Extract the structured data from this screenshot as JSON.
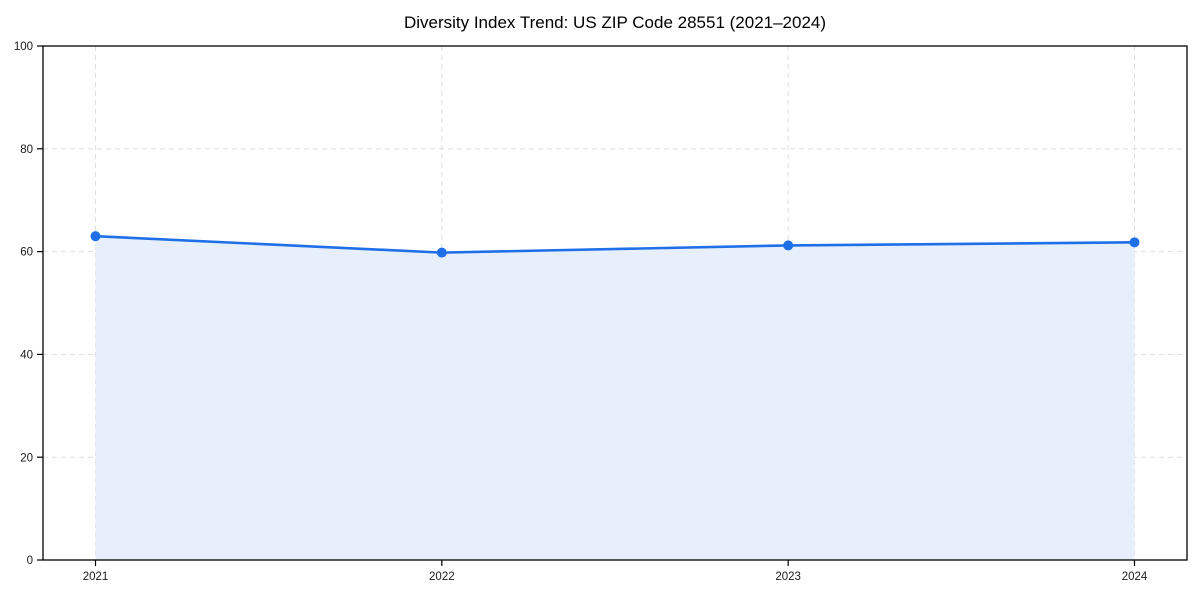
{
  "title": "Diversity Index Trend: US ZIP Code 28551 (2021–2024)",
  "chart_data": {
    "type": "line",
    "title": "Diversity Index Trend: US ZIP Code 28551 (2021–2024)",
    "x": [
      "2021",
      "2022",
      "2023",
      "2024"
    ],
    "series": [
      {
        "name": "Diversity Index",
        "values": [
          63.0,
          59.8,
          61.2,
          61.8
        ]
      }
    ],
    "xlabel": "",
    "ylabel": "",
    "ylim": [
      0,
      100
    ],
    "yticks": [
      0,
      20,
      40,
      60,
      80,
      100
    ],
    "grid": true,
    "grid_style": "dashed",
    "legend_position": "none",
    "area_fill": true,
    "colors": {
      "line": "#1f6fe8",
      "marker": "#1f6fe8",
      "fill": "#e7effd",
      "grid": "#dedede",
      "spine": "#000000",
      "tick_text": "#1a1a1a"
    }
  }
}
